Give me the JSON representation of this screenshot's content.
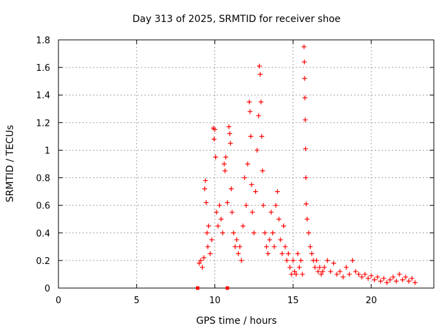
{
  "chart_data": {
    "type": "scatter",
    "title": "Day 313 of 2025, SRMTID for receiver shoe",
    "xlabel": "GPS time / hours",
    "ylabel": "SRMTID / TECUs",
    "xlim": [
      0,
      24
    ],
    "ylim": [
      0,
      1.8
    ],
    "x_ticks": [
      0,
      5,
      10,
      15,
      20
    ],
    "x_tick_labels": [
      "0",
      "5",
      "10",
      "15",
      "20"
    ],
    "y_ticks": [
      0,
      0.2,
      0.4,
      0.6,
      0.8,
      1.0,
      1.2,
      1.4,
      1.6,
      1.8
    ],
    "y_tick_labels": [
      "0",
      "0.2",
      "0.4",
      "0.6",
      "0.8",
      "1",
      "1.2",
      "1.4",
      "1.6",
      "1.8"
    ],
    "grid": true,
    "marker": "plus",
    "color": "#ff0000",
    "square_markers": [
      [
        8.9,
        0.0
      ],
      [
        10.8,
        0.0
      ]
    ],
    "series": [
      {
        "name": "SRMTID",
        "points": [
          [
            9.0,
            0.18
          ],
          [
            9.1,
            0.2
          ],
          [
            9.2,
            0.15
          ],
          [
            9.3,
            0.22
          ],
          [
            9.35,
            0.72
          ],
          [
            9.4,
            0.78
          ],
          [
            9.45,
            0.62
          ],
          [
            9.5,
            0.4
          ],
          [
            9.55,
            0.3
          ],
          [
            9.6,
            0.45
          ],
          [
            9.7,
            0.25
          ],
          [
            9.8,
            0.35
          ],
          [
            9.9,
            1.16
          ],
          [
            9.95,
            1.08
          ],
          [
            10.0,
            1.15
          ],
          [
            10.05,
            0.95
          ],
          [
            10.1,
            0.55
          ],
          [
            10.2,
            0.45
          ],
          [
            10.3,
            0.6
          ],
          [
            10.4,
            0.5
          ],
          [
            10.5,
            0.4
          ],
          [
            10.6,
            0.9
          ],
          [
            10.65,
            0.85
          ],
          [
            10.7,
            0.95
          ],
          [
            10.8,
            0.62
          ],
          [
            10.9,
            1.17
          ],
          [
            10.95,
            1.12
          ],
          [
            11.0,
            1.05
          ],
          [
            11.05,
            0.72
          ],
          [
            11.1,
            0.55
          ],
          [
            11.2,
            0.4
          ],
          [
            11.3,
            0.3
          ],
          [
            11.4,
            0.35
          ],
          [
            11.5,
            0.25
          ],
          [
            11.6,
            0.3
          ],
          [
            11.7,
            0.2
          ],
          [
            11.8,
            0.45
          ],
          [
            11.9,
            0.8
          ],
          [
            12.0,
            0.6
          ],
          [
            12.1,
            0.9
          ],
          [
            12.2,
            1.35
          ],
          [
            12.25,
            1.28
          ],
          [
            12.3,
            1.1
          ],
          [
            12.35,
            0.75
          ],
          [
            12.4,
            0.55
          ],
          [
            12.5,
            0.4
          ],
          [
            12.6,
            0.7
          ],
          [
            12.7,
            1.0
          ],
          [
            12.8,
            1.25
          ],
          [
            12.85,
            1.61
          ],
          [
            12.9,
            1.55
          ],
          [
            12.95,
            1.35
          ],
          [
            13.0,
            1.1
          ],
          [
            13.05,
            0.85
          ],
          [
            13.1,
            0.6
          ],
          [
            13.2,
            0.4
          ],
          [
            13.3,
            0.3
          ],
          [
            13.4,
            0.25
          ],
          [
            13.5,
            0.35
          ],
          [
            13.6,
            0.55
          ],
          [
            13.7,
            0.4
          ],
          [
            13.8,
            0.3
          ],
          [
            13.9,
            0.6
          ],
          [
            14.0,
            0.7
          ],
          [
            14.1,
            0.5
          ],
          [
            14.2,
            0.35
          ],
          [
            14.3,
            0.25
          ],
          [
            14.4,
            0.45
          ],
          [
            14.5,
            0.3
          ],
          [
            14.6,
            0.2
          ],
          [
            14.7,
            0.25
          ],
          [
            14.8,
            0.15
          ],
          [
            14.9,
            0.1
          ],
          [
            15.0,
            0.2
          ],
          [
            15.1,
            0.12
          ],
          [
            15.2,
            0.1
          ],
          [
            15.3,
            0.25
          ],
          [
            15.4,
            0.15
          ],
          [
            15.5,
            0.2
          ],
          [
            15.6,
            0.1
          ],
          [
            15.7,
            1.75
          ],
          [
            15.72,
            1.64
          ],
          [
            15.74,
            1.52
          ],
          [
            15.76,
            1.38
          ],
          [
            15.78,
            1.22
          ],
          [
            15.8,
            1.01
          ],
          [
            15.82,
            0.8
          ],
          [
            15.84,
            0.61
          ],
          [
            15.9,
            0.5
          ],
          [
            16.0,
            0.4
          ],
          [
            16.1,
            0.3
          ],
          [
            16.2,
            0.25
          ],
          [
            16.3,
            0.2
          ],
          [
            16.4,
            0.15
          ],
          [
            16.5,
            0.2
          ],
          [
            16.6,
            0.12
          ],
          [
            16.7,
            0.15
          ],
          [
            16.8,
            0.1
          ],
          [
            16.9,
            0.12
          ],
          [
            17.0,
            0.15
          ],
          [
            17.2,
            0.2
          ],
          [
            17.4,
            0.12
          ],
          [
            17.6,
            0.18
          ],
          [
            17.8,
            0.1
          ],
          [
            18.0,
            0.12
          ],
          [
            18.2,
            0.08
          ],
          [
            18.4,
            0.15
          ],
          [
            18.6,
            0.1
          ],
          [
            18.8,
            0.2
          ],
          [
            19.0,
            0.12
          ],
          [
            19.2,
            0.1
          ],
          [
            19.4,
            0.08
          ],
          [
            19.6,
            0.1
          ],
          [
            19.8,
            0.07
          ],
          [
            20.0,
            0.09
          ],
          [
            20.2,
            0.06
          ],
          [
            20.4,
            0.08
          ],
          [
            20.6,
            0.05
          ],
          [
            20.8,
            0.07
          ],
          [
            21.0,
            0.04
          ],
          [
            21.2,
            0.06
          ],
          [
            21.4,
            0.08
          ],
          [
            21.6,
            0.05
          ],
          [
            21.8,
            0.1
          ],
          [
            22.0,
            0.06
          ],
          [
            22.2,
            0.08
          ],
          [
            22.4,
            0.05
          ],
          [
            22.6,
            0.07
          ],
          [
            22.8,
            0.04
          ]
        ]
      }
    ]
  }
}
